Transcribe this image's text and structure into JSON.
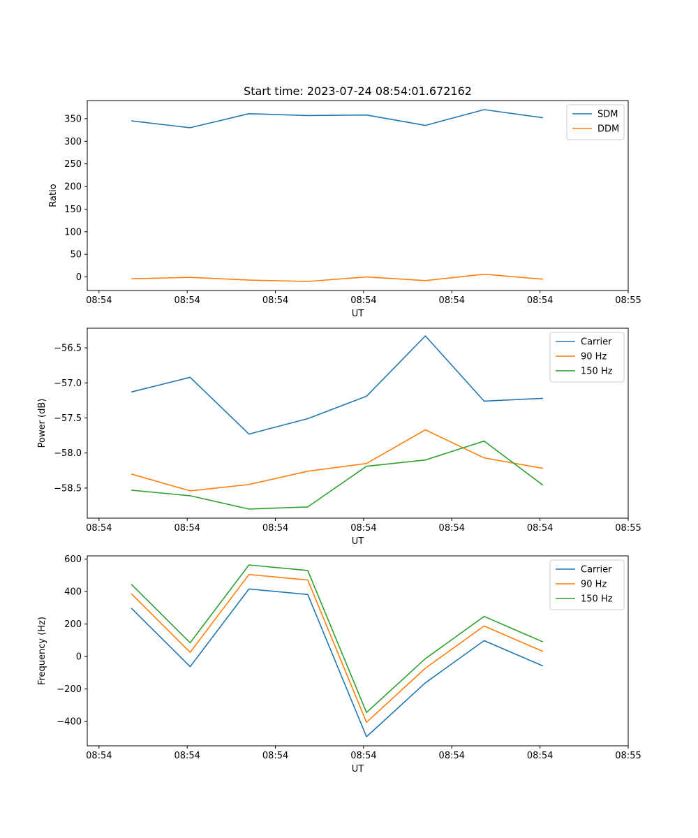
{
  "figure": {
    "title": "Start time: 2023-07-24 08:54:01.672162"
  },
  "colors": {
    "blue": "#1f77b4",
    "orange": "#ff7f0e",
    "green": "#2ca02c"
  },
  "chart_data": [
    {
      "type": "line",
      "ylabel": "Ratio",
      "xlabel": "UT",
      "xlim": [
        -0.2,
        9.0
      ],
      "x": [
        0.55,
        1.55,
        2.55,
        3.55,
        4.55,
        5.55,
        6.55,
        7.55
      ],
      "xticks": [
        0.0,
        1.5,
        3.0,
        4.5,
        6.0,
        7.5,
        9.0
      ],
      "xticklabels": [
        "08:54",
        "08:54",
        "08:54",
        "08:54",
        "08:54",
        "08:54",
        "08:55"
      ],
      "ylim": [
        -30,
        390
      ],
      "yticks": [
        0,
        50,
        100,
        150,
        200,
        250,
        300,
        350
      ],
      "yticklabels": [
        "0",
        "50",
        "100",
        "150",
        "200",
        "250",
        "300",
        "350"
      ],
      "series": [
        {
          "name": "SDM",
          "color": "#1f77b4",
          "values": [
            345,
            330,
            361,
            357,
            358,
            335,
            370,
            352
          ]
        },
        {
          "name": "DDM",
          "color": "#ff7f0e",
          "values": [
            -4,
            -1,
            -7,
            -10,
            0,
            -8,
            6,
            -5
          ]
        }
      ]
    },
    {
      "type": "line",
      "ylabel": "Power (dB)",
      "xlabel": "UT",
      "xlim": [
        -0.2,
        9.0
      ],
      "x": [
        0.55,
        1.55,
        2.55,
        3.55,
        4.55,
        5.55,
        6.55,
        7.55
      ],
      "xticks": [
        0.0,
        1.5,
        3.0,
        4.5,
        6.0,
        7.5,
        9.0
      ],
      "xticklabels": [
        "08:54",
        "08:54",
        "08:54",
        "08:54",
        "08:54",
        "08:54",
        "08:55"
      ],
      "ylim": [
        -58.93,
        -56.22
      ],
      "yticks": [
        -58.5,
        -58.0,
        -57.5,
        -57.0,
        -56.5
      ],
      "yticklabels": [
        "−58.5",
        "−58.0",
        "−57.5",
        "−57.0",
        "−56.5"
      ],
      "series": [
        {
          "name": "Carrier",
          "color": "#1f77b4",
          "values": [
            -57.13,
            -56.92,
            -57.73,
            -57.51,
            -57.19,
            -56.33,
            -57.26,
            -57.22
          ]
        },
        {
          "name": "90 Hz",
          "color": "#ff7f0e",
          "values": [
            -58.3,
            -58.54,
            -58.45,
            -58.26,
            -58.15,
            -57.67,
            -58.07,
            -58.22
          ]
        },
        {
          "name": "150 Hz",
          "color": "#2ca02c",
          "values": [
            -58.53,
            -58.61,
            -58.8,
            -58.77,
            -58.19,
            -58.1,
            -57.83,
            -58.46
          ]
        }
      ]
    },
    {
      "type": "line",
      "ylabel": "Frequency (Hz)",
      "xlabel": "UT",
      "xlim": [
        -0.2,
        9.0
      ],
      "x": [
        0.55,
        1.55,
        2.55,
        3.55,
        4.55,
        5.55,
        6.55,
        7.55
      ],
      "xticks": [
        0.0,
        1.5,
        3.0,
        4.5,
        6.0,
        7.5,
        9.0
      ],
      "xticklabels": [
        "08:54",
        "08:54",
        "08:54",
        "08:54",
        "08:54",
        "08:54",
        "08:55"
      ],
      "ylim": [
        -550,
        620
      ],
      "yticks": [
        -400,
        -200,
        0,
        200,
        400,
        600
      ],
      "yticklabels": [
        "−400",
        "−200",
        "0",
        "200",
        "400",
        "600"
      ],
      "series": [
        {
          "name": "Carrier",
          "color": "#1f77b4",
          "values": [
            298,
            -62,
            416,
            382,
            -494,
            -162,
            98,
            -58
          ]
        },
        {
          "name": "90 Hz",
          "color": "#ff7f0e",
          "values": [
            387,
            26,
            505,
            471,
            -405,
            -72,
            188,
            31
          ]
        },
        {
          "name": "150 Hz",
          "color": "#2ca02c",
          "values": [
            445,
            85,
            564,
            530,
            -345,
            -13,
            247,
            90
          ]
        }
      ]
    }
  ]
}
